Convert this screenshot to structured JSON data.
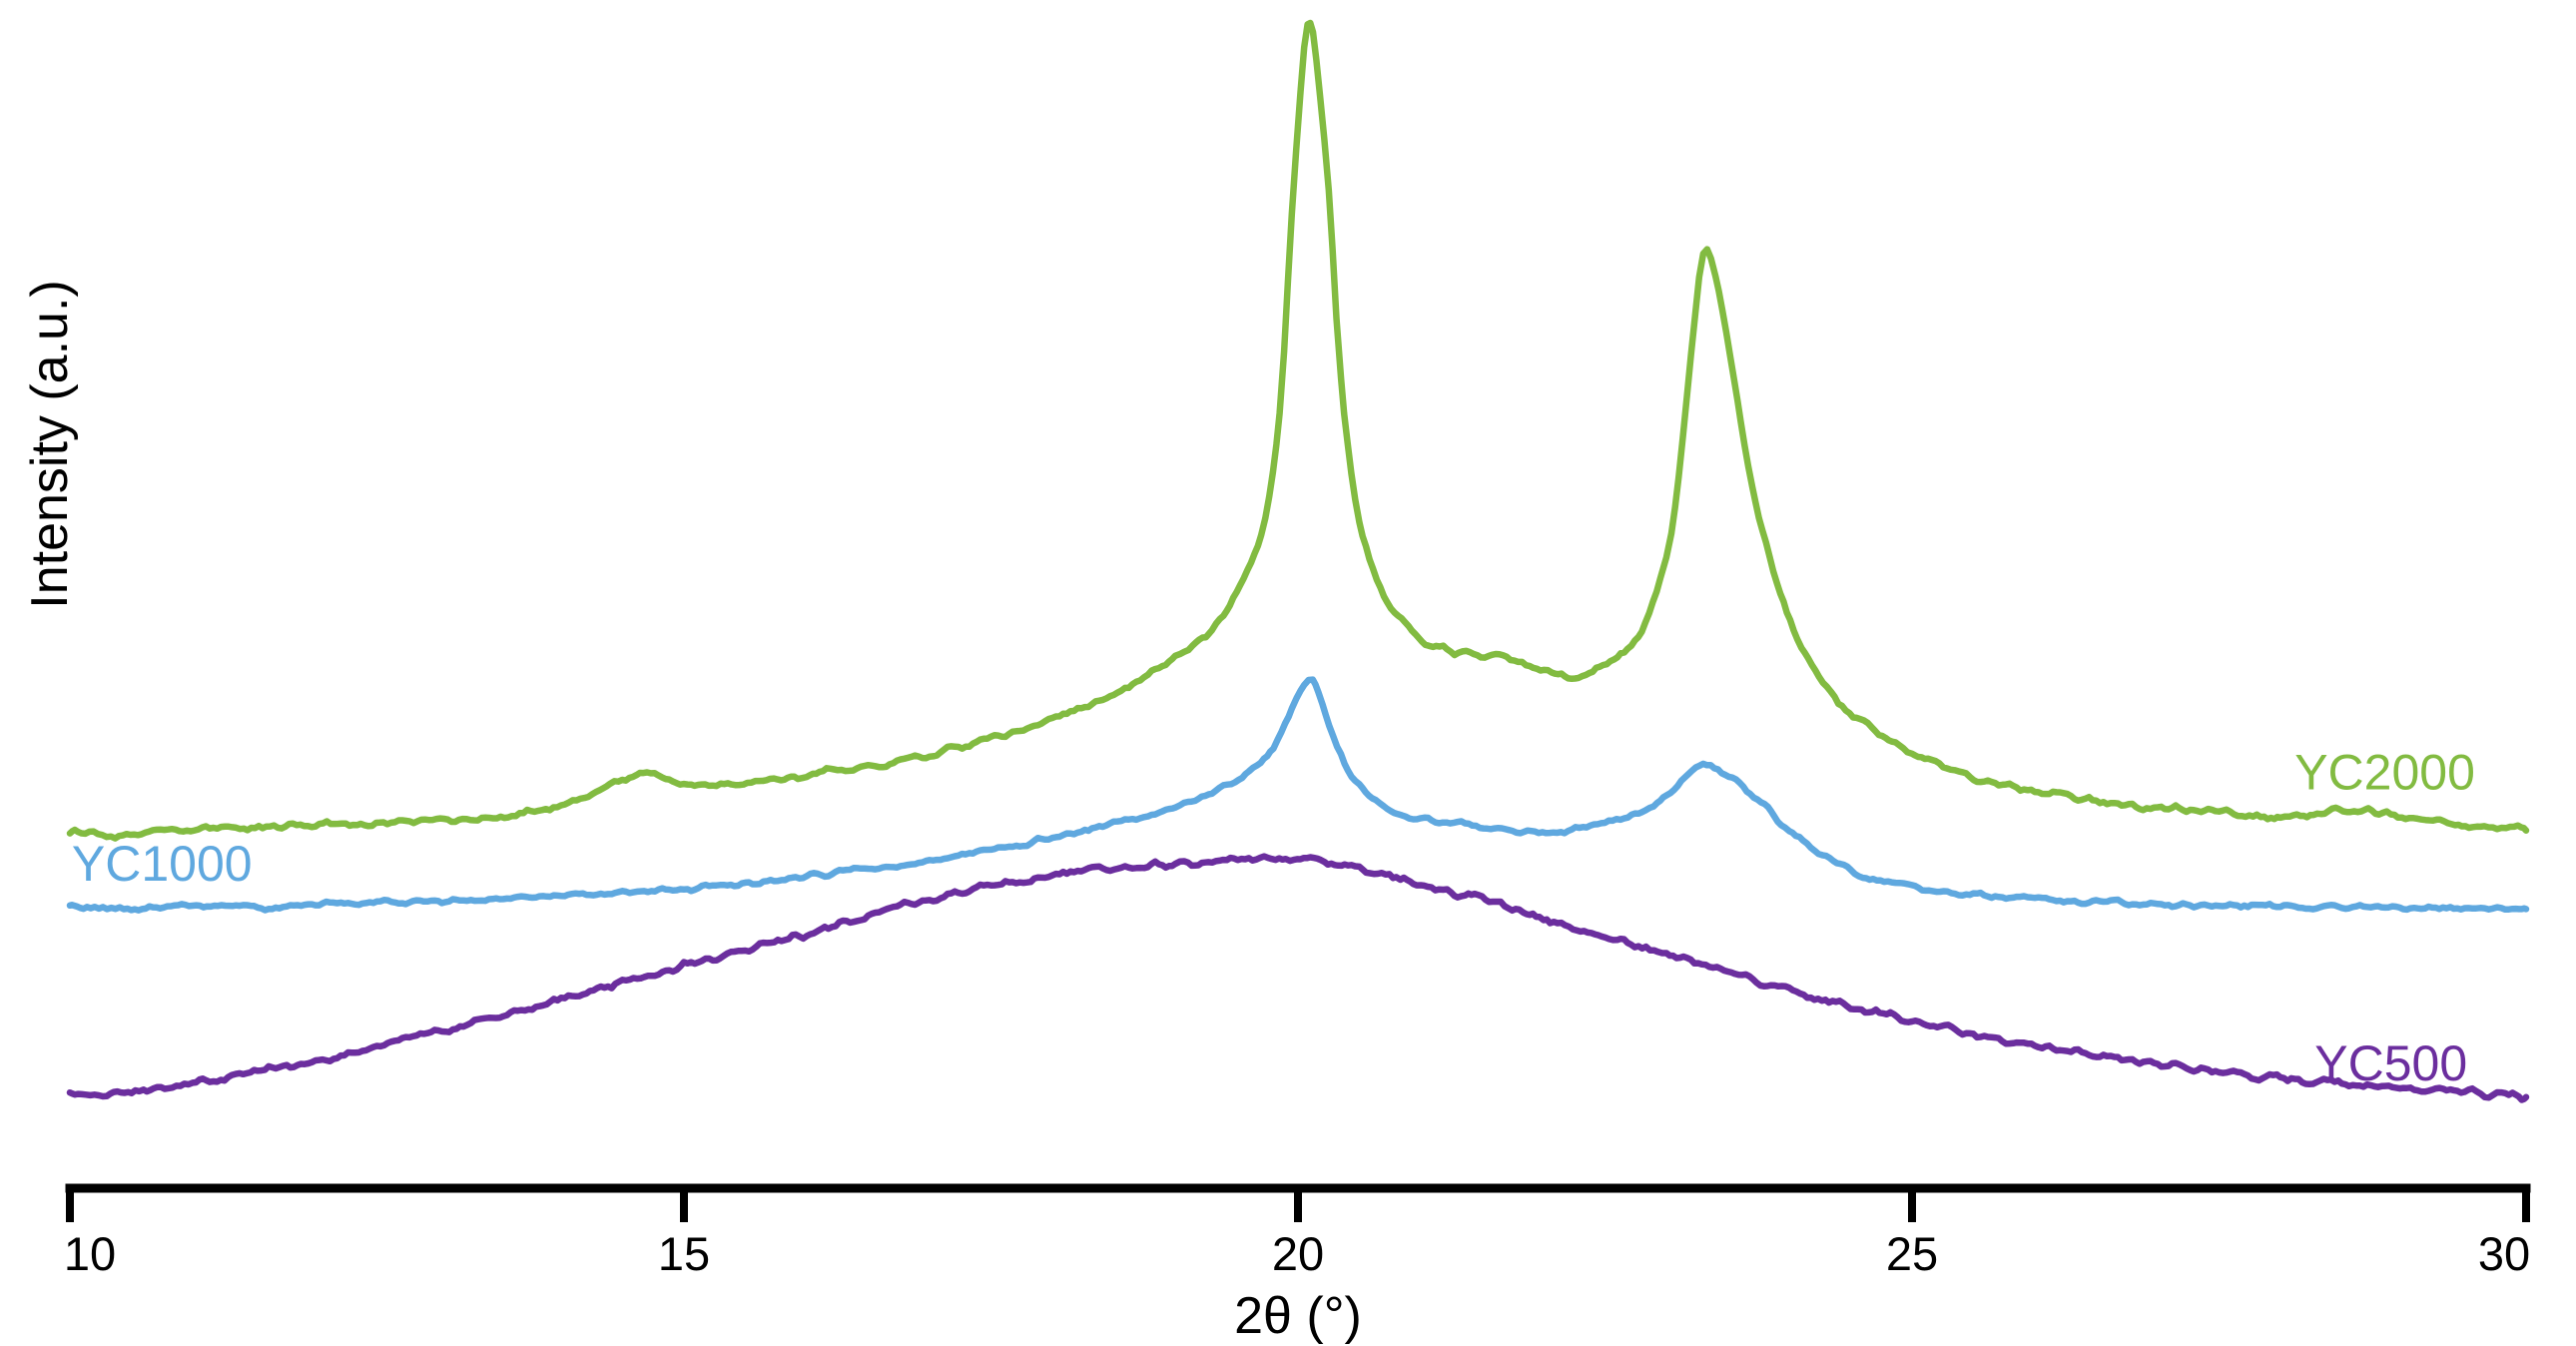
{
  "chart_data": {
    "type": "line",
    "title": "",
    "xlabel": "2θ (°)",
    "ylabel": "Intensity (a.u.)",
    "xlim": [
      10,
      30
    ],
    "ylim": [
      0,
      100
    ],
    "x_ticks": [
      10,
      15,
      20,
      25,
      30
    ],
    "y_ticks": [],
    "grid": false,
    "background": "#ffffff",
    "axis_color": "#000000",
    "legend_position": "inline-labels",
    "series": [
      {
        "name": "YC2000",
        "color": "#82BB41",
        "stroke_width": 6.5,
        "noise_amp": 0.4,
        "label": {
          "text": "YC2000",
          "x": 28.85,
          "y": 35
        },
        "peaks_2theta": [
          14.7,
          20.1,
          23.3
        ],
        "points": [
          [
            10,
            30
          ],
          [
            10.4,
            29.7
          ],
          [
            10.8,
            30.1
          ],
          [
            11.2,
            30.2
          ],
          [
            11.6,
            30.4
          ],
          [
            12,
            30.6
          ],
          [
            12.4,
            30.5
          ],
          [
            12.8,
            30.9
          ],
          [
            13.2,
            31.1
          ],
          [
            13.6,
            31.4
          ],
          [
            14,
            32.2
          ],
          [
            14.4,
            34
          ],
          [
            14.7,
            34.9
          ],
          [
            15,
            34.1
          ],
          [
            15.3,
            33.9
          ],
          [
            15.7,
            34.3
          ],
          [
            16,
            34.8
          ],
          [
            16.5,
            35.5
          ],
          [
            17,
            36.6
          ],
          [
            17.5,
            37.9
          ],
          [
            18,
            39.6
          ],
          [
            18.5,
            41.6
          ],
          [
            19,
            44.6
          ],
          [
            19.3,
            47
          ],
          [
            19.5,
            50
          ],
          [
            19.7,
            55
          ],
          [
            19.85,
            65
          ],
          [
            19.95,
            82
          ],
          [
            20.05,
            96
          ],
          [
            20.1,
            98
          ],
          [
            20.15,
            95
          ],
          [
            20.25,
            84
          ],
          [
            20.35,
            68
          ],
          [
            20.5,
            56
          ],
          [
            20.7,
            50
          ],
          [
            20.9,
            47
          ],
          [
            21.1,
            45.6
          ],
          [
            21.4,
            45
          ],
          [
            21.7,
            44.5
          ],
          [
            22,
            43.6
          ],
          [
            22.2,
            43.1
          ],
          [
            22.4,
            43.5
          ],
          [
            22.6,
            44.6
          ],
          [
            22.8,
            47
          ],
          [
            23,
            53
          ],
          [
            23.1,
            60
          ],
          [
            23.2,
            70
          ],
          [
            23.3,
            78.5
          ],
          [
            23.4,
            77
          ],
          [
            23.55,
            68
          ],
          [
            23.7,
            59
          ],
          [
            23.9,
            51
          ],
          [
            24.1,
            45.5
          ],
          [
            24.4,
            41
          ],
          [
            24.7,
            38.5
          ],
          [
            25,
            36.6
          ],
          [
            25.5,
            34.6
          ],
          [
            26,
            33.4
          ],
          [
            26.5,
            32.6
          ],
          [
            27,
            32
          ],
          [
            27.5,
            31.6
          ],
          [
            28,
            31.2
          ],
          [
            28.3,
            31.5
          ],
          [
            28.6,
            31.9
          ],
          [
            28.9,
            31.4
          ],
          [
            29.3,
            30.9
          ],
          [
            29.6,
            30.4
          ],
          [
            30,
            30.2
          ]
        ]
      },
      {
        "name": "YC1000",
        "color": "#5FA8DF",
        "stroke_width": 6.5,
        "noise_amp": 0.3,
        "label": {
          "text": "YC1000",
          "x": 10.75,
          "y": 27.3
        },
        "peaks_2theta": [
          20.1,
          23.3
        ],
        "points": [
          [
            10,
            23.7
          ],
          [
            10.5,
            23.5
          ],
          [
            11,
            23.8
          ],
          [
            11.5,
            23.6
          ],
          [
            12,
            23.9
          ],
          [
            12.5,
            24
          ],
          [
            13,
            24.2
          ],
          [
            13.5,
            24.4
          ],
          [
            14,
            24.6
          ],
          [
            14.5,
            24.9
          ],
          [
            15,
            25.2
          ],
          [
            15.5,
            25.7
          ],
          [
            16,
            26.2
          ],
          [
            16.5,
            26.9
          ],
          [
            17,
            27.6
          ],
          [
            17.5,
            28.5
          ],
          [
            18,
            29.5
          ],
          [
            18.5,
            30.7
          ],
          [
            19,
            32.1
          ],
          [
            19.3,
            33.3
          ],
          [
            19.6,
            35.1
          ],
          [
            19.8,
            37.2
          ],
          [
            19.95,
            40.5
          ],
          [
            20.05,
            42.3
          ],
          [
            20.12,
            42.6
          ],
          [
            20.2,
            40.5
          ],
          [
            20.35,
            36.5
          ],
          [
            20.5,
            33.8
          ],
          [
            20.7,
            32.2
          ],
          [
            21,
            31.1
          ],
          [
            21.3,
            30.7
          ],
          [
            21.6,
            30.3
          ],
          [
            21.9,
            29.9
          ],
          [
            22.2,
            30.1
          ],
          [
            22.5,
            30.7
          ],
          [
            22.8,
            31.7
          ],
          [
            23,
            32.9
          ],
          [
            23.15,
            34.3
          ],
          [
            23.3,
            35.6
          ],
          [
            23.45,
            35.1
          ],
          [
            23.6,
            33.9
          ],
          [
            23.8,
            32.1
          ],
          [
            24,
            30.1
          ],
          [
            24.3,
            27.9
          ],
          [
            24.6,
            26.3
          ],
          [
            25,
            25.3
          ],
          [
            25.5,
            24.7
          ],
          [
            26,
            24.3
          ],
          [
            26.5,
            24.1
          ],
          [
            27,
            23.9
          ],
          [
            27.5,
            23.8
          ],
          [
            28,
            23.7
          ],
          [
            28.5,
            23.7
          ],
          [
            29,
            23.6
          ],
          [
            29.5,
            23.6
          ],
          [
            30,
            23.6
          ]
        ]
      },
      {
        "name": "YC500",
        "color": "#6B2E9E",
        "stroke_width": 6.5,
        "noise_amp": 0.45,
        "label": {
          "text": "YC500",
          "x": 28.9,
          "y": 10.5
        },
        "peaks_2theta": [
          19.6
        ],
        "points": [
          [
            10,
            8
          ],
          [
            10.3,
            7.8
          ],
          [
            10.6,
            8.3
          ],
          [
            11,
            8.9
          ],
          [
            11.5,
            9.7
          ],
          [
            12,
            10.7
          ],
          [
            12.5,
            11.9
          ],
          [
            13,
            13.1
          ],
          [
            13.5,
            14.5
          ],
          [
            14,
            15.9
          ],
          [
            14.5,
            17.3
          ],
          [
            15,
            18.7
          ],
          [
            15.5,
            20.1
          ],
          [
            16,
            21.5
          ],
          [
            16.5,
            22.9
          ],
          [
            17,
            24.3
          ],
          [
            17.5,
            25.5
          ],
          [
            18,
            26.3
          ],
          [
            18.5,
            26.9
          ],
          [
            19,
            27.3
          ],
          [
            19.3,
            27.6
          ],
          [
            19.6,
            27.8
          ],
          [
            19.9,
            27.5
          ],
          [
            20.1,
            27.7
          ],
          [
            20.3,
            27.3
          ],
          [
            20.5,
            26.9
          ],
          [
            20.8,
            26.1
          ],
          [
            21,
            25.5
          ],
          [
            21.3,
            24.7
          ],
          [
            21.5,
            24.3
          ],
          [
            21.8,
            23.3
          ],
          [
            22,
            22.7
          ],
          [
            22.3,
            21.7
          ],
          [
            22.6,
            20.9
          ],
          [
            23,
            19.7
          ],
          [
            23.5,
            18.1
          ],
          [
            24,
            16.7
          ],
          [
            24.5,
            15.3
          ],
          [
            25,
            14.1
          ],
          [
            25.5,
            13
          ],
          [
            26,
            12
          ],
          [
            26.5,
            11.1
          ],
          [
            27,
            10.4
          ],
          [
            27.5,
            9.8
          ],
          [
            28,
            9.3
          ],
          [
            28.5,
            8.9
          ],
          [
            29,
            8.5
          ],
          [
            29.5,
            8.1
          ],
          [
            30,
            7.7
          ]
        ]
      }
    ]
  }
}
